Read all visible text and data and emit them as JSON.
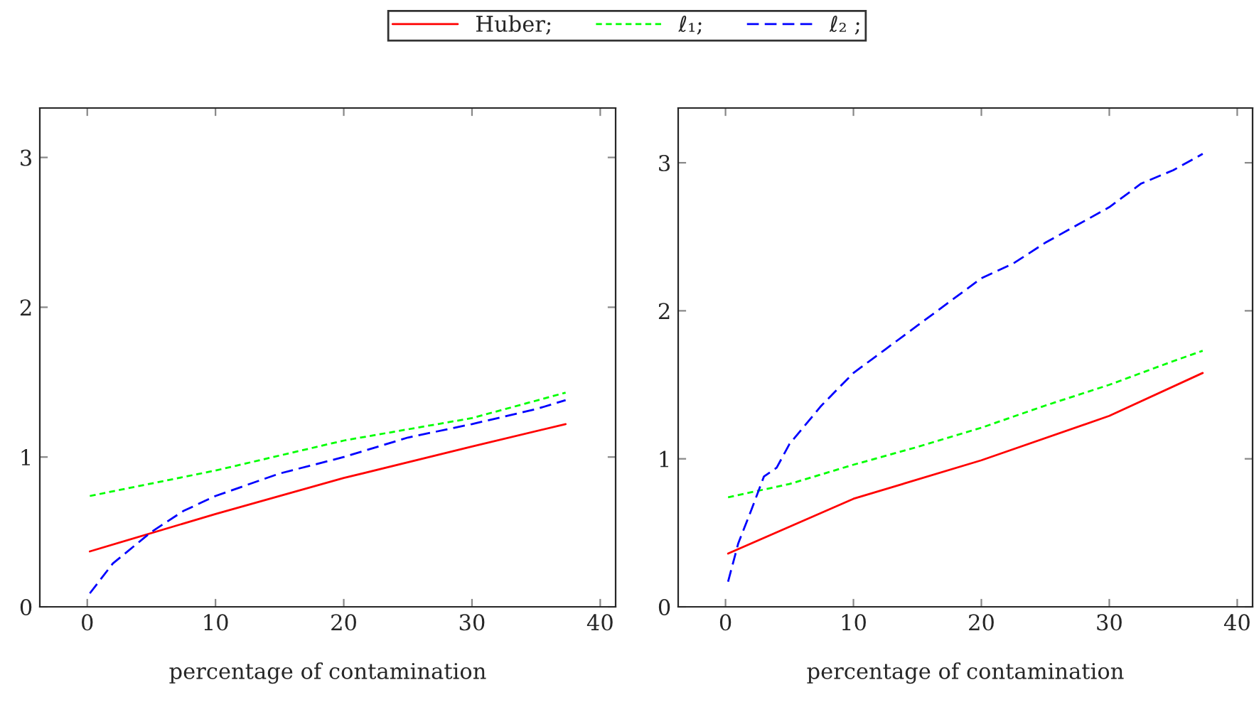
{
  "chart_data": [
    {
      "type": "line",
      "xlabel": "percentage of contamination",
      "xlim": [
        -3.7,
        41.2
      ],
      "ylim": [
        0,
        3.33
      ],
      "xticks": [
        0,
        10,
        20,
        30,
        40
      ],
      "yticks": [
        0,
        1,
        2,
        3
      ],
      "grid": false,
      "legend": "top",
      "series": [
        {
          "name": "Huber;",
          "color": "#ff0000",
          "line_style": "solid",
          "x": [
            0.2,
            10,
            20,
            30,
            37.3
          ],
          "values": [
            0.37,
            0.62,
            0.86,
            1.07,
            1.22
          ]
        },
        {
          "name": "ℓ₁;",
          "color": "#00ff00",
          "line_style": "dashed",
          "x": [
            0.2,
            10,
            20,
            30,
            37.3
          ],
          "values": [
            0.74,
            0.91,
            1.11,
            1.26,
            1.43
          ]
        },
        {
          "name": "ℓ₂ ;",
          "color": "#0000ff",
          "line_style": "dashed",
          "x": [
            0.2,
            2,
            5,
            7.5,
            10,
            15,
            20,
            25,
            30,
            35,
            37.3
          ],
          "values": [
            0.09,
            0.29,
            0.5,
            0.64,
            0.74,
            0.89,
            1.0,
            1.13,
            1.22,
            1.32,
            1.38
          ]
        }
      ]
    },
    {
      "type": "line",
      "xlabel": "percentage of contamination",
      "xlim": [
        -3.7,
        41.2
      ],
      "ylim": [
        0,
        3.37
      ],
      "xticks": [
        0,
        10,
        20,
        30,
        40
      ],
      "yticks": [
        0,
        1,
        2,
        3
      ],
      "grid": false,
      "legend": "top",
      "series": [
        {
          "name": "Huber;",
          "color": "#ff0000",
          "line_style": "solid",
          "x": [
            0.2,
            10,
            20,
            30,
            37.3
          ],
          "values": [
            0.36,
            0.73,
            0.99,
            1.29,
            1.58
          ]
        },
        {
          "name": "ℓ₁;",
          "color": "#00ff00",
          "line_style": "dashed",
          "x": [
            0.2,
            5,
            10,
            15,
            20,
            25,
            30,
            35,
            37.3
          ],
          "values": [
            0.74,
            0.83,
            0.96,
            1.08,
            1.21,
            1.36,
            1.5,
            1.66,
            1.73
          ]
        },
        {
          "name": "ℓ₂ ;",
          "color": "#0000ff",
          "line_style": "dashed",
          "x": [
            0.2,
            1,
            2,
            3,
            4,
            5,
            7.5,
            10,
            12.5,
            15,
            17.5,
            20,
            22.5,
            25,
            27.5,
            30,
            32.5,
            35,
            37.3
          ],
          "values": [
            0.17,
            0.43,
            0.65,
            0.88,
            0.94,
            1.1,
            1.36,
            1.58,
            1.74,
            1.9,
            2.06,
            2.22,
            2.32,
            2.46,
            2.58,
            2.7,
            2.86,
            2.95,
            3.06
          ]
        }
      ]
    }
  ]
}
